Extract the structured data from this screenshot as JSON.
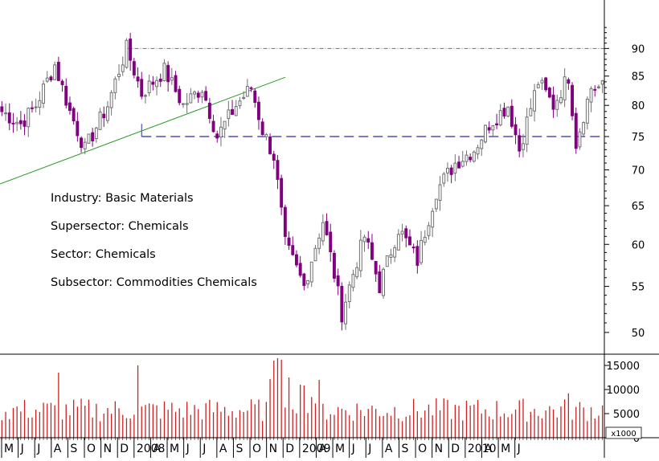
{
  "chart_data": [
    {
      "type": "candlestick",
      "title": "",
      "xlabel": "",
      "ylabel": "",
      "y_scale": "log",
      "ylim": [
        47.8,
        99.5
      ],
      "y_ticks": [
        50,
        55,
        60,
        65,
        70,
        75,
        80,
        85,
        90
      ],
      "x_tick_labels": [
        "M",
        "J",
        "J",
        "A",
        "S",
        "O",
        "N",
        "D",
        "2008",
        "A",
        "M",
        "J",
        "J",
        "A",
        "S",
        "O",
        "N",
        "D",
        "2009",
        "A",
        "M",
        "J",
        "J",
        "A",
        "S",
        "O",
        "N",
        "D",
        "2010",
        "A",
        "M",
        "J"
      ],
      "colors": {
        "down_candle": "#800080",
        "up_candle": "#707070",
        "resistance_line": "#707070",
        "support_line": "#2a2aa8",
        "trend_line": "#2e9a2e"
      },
      "annotations": [
        "Industry: Basic Materials",
        "Supersector: Chemicals",
        "Sector: Chemicals",
        "Subsector: Commodities Chemicals"
      ],
      "levels": {
        "resistance": 90,
        "support": 75
      },
      "trend_line": {
        "from": 68,
        "to": 84.8
      },
      "pivots": [
        79,
        77,
        80,
        87,
        79,
        73,
        80,
        90,
        82,
        86,
        80,
        83,
        75,
        80,
        83,
        76,
        72,
        60,
        55,
        63,
        52,
        61,
        55,
        62,
        58,
        67,
        71,
        73,
        77,
        80,
        73,
        84,
        80,
        85,
        74,
        83
      ],
      "pivot_weeks": [
        0,
        5,
        9,
        14,
        18,
        22,
        28,
        33,
        37,
        43,
        48,
        53,
        57,
        62,
        66,
        69,
        72,
        75,
        80,
        85,
        90,
        96,
        100,
        105,
        110,
        115,
        120,
        125,
        129,
        134,
        137,
        142,
        146,
        150,
        152,
        156
      ]
    },
    {
      "type": "bar",
      "title": "",
      "xlabel": "",
      "ylabel": "",
      "unit": "x1000",
      "ylim": [
        0,
        17000
      ],
      "y_ticks": [
        0,
        5000,
        10000,
        15000
      ],
      "bar_color": "#cc2222",
      "baseline": 5500,
      "peaks": [
        {
          "week": 15,
          "value": 13500
        },
        {
          "week": 36,
          "value": 15000
        },
        {
          "week": 72,
          "value": 16000
        },
        {
          "week": 73,
          "value": 16500
        },
        {
          "week": 74,
          "value": 16200
        },
        {
          "week": 76,
          "value": 12500
        },
        {
          "week": 79,
          "value": 11000
        },
        {
          "week": 150,
          "value": 9200
        }
      ]
    }
  ]
}
